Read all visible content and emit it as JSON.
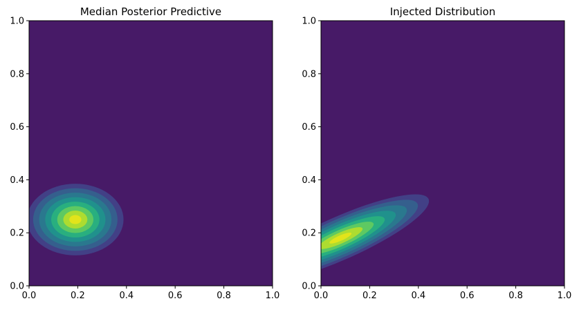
{
  "chart_data": [
    {
      "type": "contour",
      "title": "Median Posterior Predictive",
      "xlabel": "",
      "ylabel": "",
      "xlim": [
        0,
        1
      ],
      "ylim": [
        0,
        1
      ],
      "x_ticks": [
        "0.0",
        "0.2",
        "0.4",
        "0.6",
        "0.8",
        "1.0"
      ],
      "y_ticks": [
        "0.0",
        "0.2",
        "0.4",
        "0.6",
        "0.8",
        "1.0"
      ],
      "grid": false,
      "colormap": "viridis",
      "distribution": {
        "center": [
          0.19,
          0.25
        ],
        "sigma_x": 0.11,
        "sigma_y": 0.075,
        "rotation_deg": 0,
        "outer_extent_x": [
          0.0,
          0.4
        ],
        "outer_extent_y": [
          0.11,
          0.38
        ]
      },
      "levels": 8,
      "background_color": "#471a67"
    },
    {
      "type": "contour",
      "title": "Injected Distribution",
      "xlabel": "",
      "ylabel": "",
      "xlim": [
        0,
        1
      ],
      "ylim": [
        0,
        1
      ],
      "x_ticks": [
        "0.0",
        "0.2",
        "0.4",
        "0.6",
        "0.8",
        "1.0"
      ],
      "y_ticks": [
        "0.0",
        "0.2",
        "0.4",
        "0.6",
        "0.8",
        "1.0"
      ],
      "grid": false,
      "colormap": "viridis",
      "distribution": {
        "center": [
          0.08,
          0.18
        ],
        "sigma_x": 0.22,
        "sigma_y": 0.045,
        "rotation_deg": 24,
        "outer_extent_x": [
          0.0,
          0.5
        ],
        "outer_extent_y": [
          0.04,
          0.4
        ]
      },
      "levels": 8,
      "background_color": "#471a67"
    }
  ],
  "colors": {
    "levels": [
      "#471a67",
      "#424086",
      "#355f8d",
      "#2a788e",
      "#20918c",
      "#29af7f",
      "#5ec962",
      "#addc30",
      "#e2e41b"
    ],
    "axis": "#000000"
  }
}
